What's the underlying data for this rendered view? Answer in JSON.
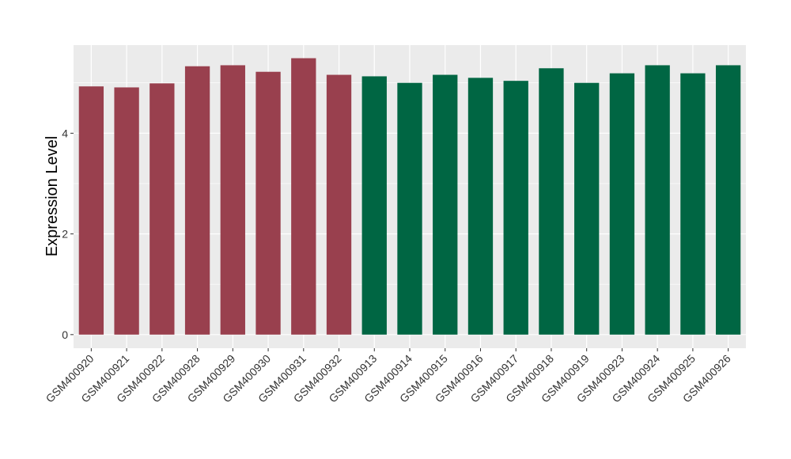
{
  "chart_data": {
    "type": "bar",
    "title": "",
    "xlabel": "",
    "ylabel": "Expression Level",
    "ylim": [
      -0.27,
      5.75
    ],
    "yticks": [
      0,
      2,
      4
    ],
    "grid": true,
    "legend": "none",
    "categories": [
      "GSM400920",
      "GSM400921",
      "GSM400922",
      "GSM400928",
      "GSM400929",
      "GSM400930",
      "GSM400931",
      "GSM400932",
      "GSM400913",
      "GSM400914",
      "GSM400915",
      "GSM400916",
      "GSM400917",
      "GSM400918",
      "GSM400919",
      "GSM400923",
      "GSM400924",
      "GSM400925",
      "GSM400926"
    ],
    "values": [
      4.93,
      4.91,
      4.99,
      5.33,
      5.35,
      5.22,
      5.49,
      5.16,
      5.13,
      5.0,
      5.16,
      5.1,
      5.04,
      5.29,
      5.0,
      5.19,
      5.35,
      5.19,
      5.35
    ],
    "groups": [
      0,
      0,
      0,
      0,
      0,
      0,
      0,
      0,
      1,
      1,
      1,
      1,
      1,
      1,
      1,
      1,
      1,
      1,
      1
    ],
    "group_colors": [
      "#99404e",
      "#006643"
    ],
    "panel_color": "#ebebeb",
    "grid_color": "#ffffff"
  }
}
